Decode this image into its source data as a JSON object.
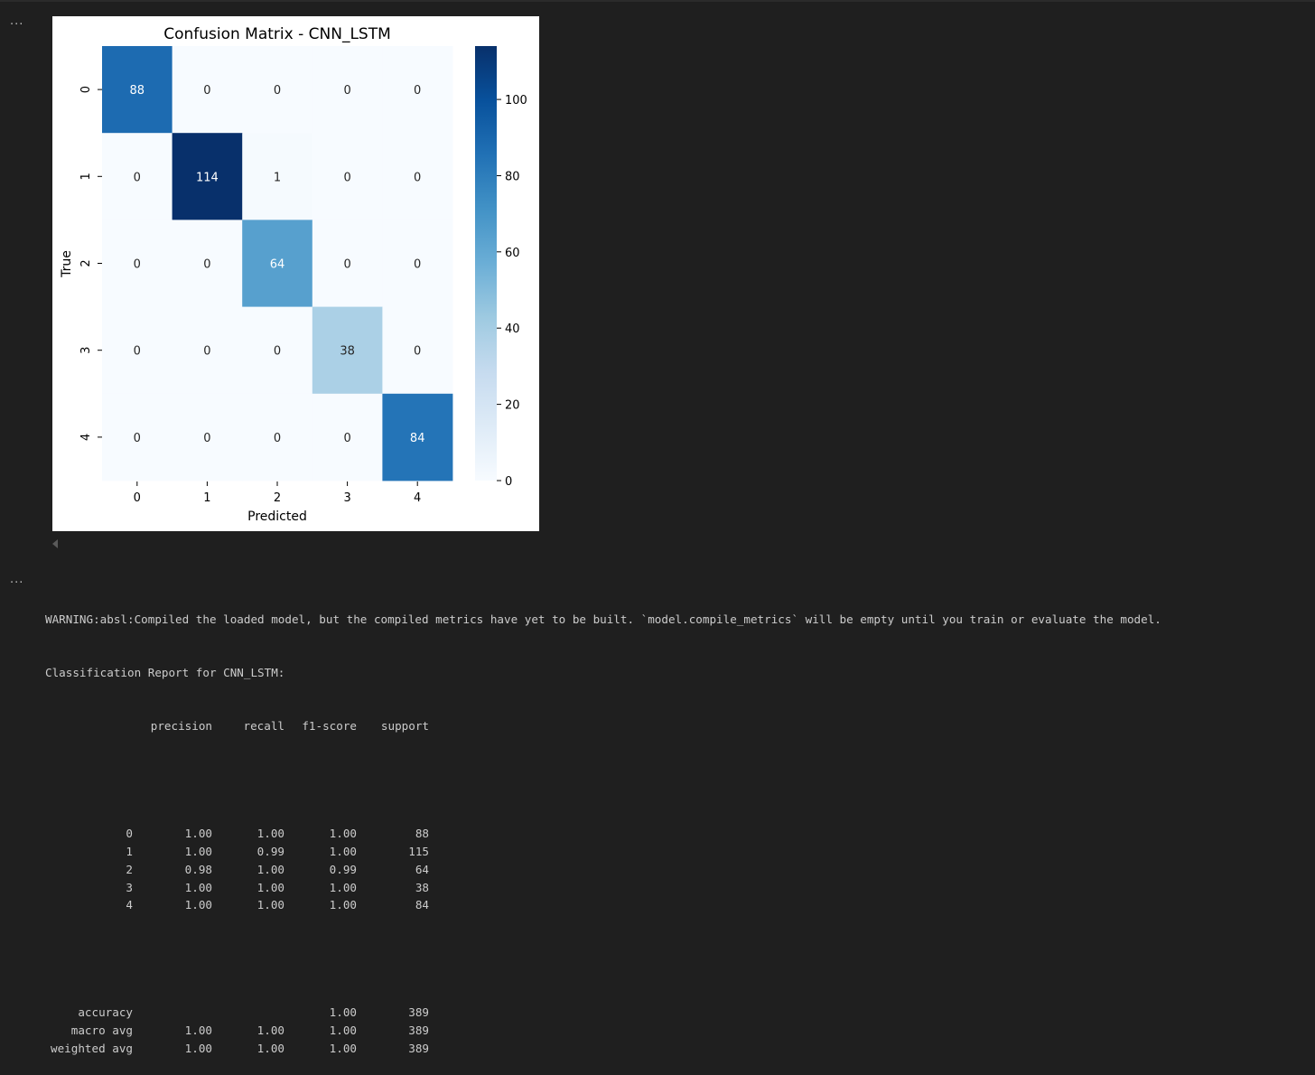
{
  "ui": {
    "more_actions_top": "...",
    "more_actions_output": "..."
  },
  "colors": {
    "background": "#1f1f1f",
    "text": "#cccccc",
    "heatmap_low": "#f7fbff",
    "heatmap_high": "#08306b"
  },
  "chart_data": {
    "type": "heatmap",
    "title": "Confusion Matrix - CNN_LSTM",
    "xlabel": "Predicted",
    "ylabel": "True",
    "x_categories": [
      "0",
      "1",
      "2",
      "3",
      "4"
    ],
    "y_categories": [
      "0",
      "1",
      "2",
      "3",
      "4"
    ],
    "matrix": [
      [
        88,
        0,
        0,
        0,
        0
      ],
      [
        0,
        114,
        1,
        0,
        0
      ],
      [
        0,
        0,
        64,
        0,
        0
      ],
      [
        0,
        0,
        0,
        38,
        0
      ],
      [
        0,
        0,
        0,
        0,
        84
      ]
    ],
    "colorbar": {
      "min": 0,
      "max": 114,
      "ticks": [
        0,
        20,
        40,
        60,
        80,
        100
      ]
    },
    "colormap": "Blues"
  },
  "output": {
    "warning": "WARNING:absl:Compiled the loaded model, but the compiled metrics have yet to be built. `model.compile_metrics` will be empty until you train or evaluate the model.",
    "report_title": "Classification Report for CNN_LSTM:",
    "headers": [
      "precision",
      "recall",
      "f1-score",
      "support"
    ],
    "class_rows": [
      {
        "label": "0",
        "precision": "1.00",
        "recall": "1.00",
        "f1": "1.00",
        "support": "88"
      },
      {
        "label": "1",
        "precision": "1.00",
        "recall": "0.99",
        "f1": "1.00",
        "support": "115"
      },
      {
        "label": "2",
        "precision": "0.98",
        "recall": "1.00",
        "f1": "0.99",
        "support": "64"
      },
      {
        "label": "3",
        "precision": "1.00",
        "recall": "1.00",
        "f1": "1.00",
        "support": "38"
      },
      {
        "label": "4",
        "precision": "1.00",
        "recall": "1.00",
        "f1": "1.00",
        "support": "84"
      }
    ],
    "summary_rows": [
      {
        "label": "accuracy",
        "precision": "",
        "recall": "",
        "f1": "1.00",
        "support": "389"
      },
      {
        "label": "macro avg",
        "precision": "1.00",
        "recall": "1.00",
        "f1": "1.00",
        "support": "389"
      },
      {
        "label": "weighted avg",
        "precision": "1.00",
        "recall": "1.00",
        "f1": "1.00",
        "support": "389"
      }
    ]
  }
}
